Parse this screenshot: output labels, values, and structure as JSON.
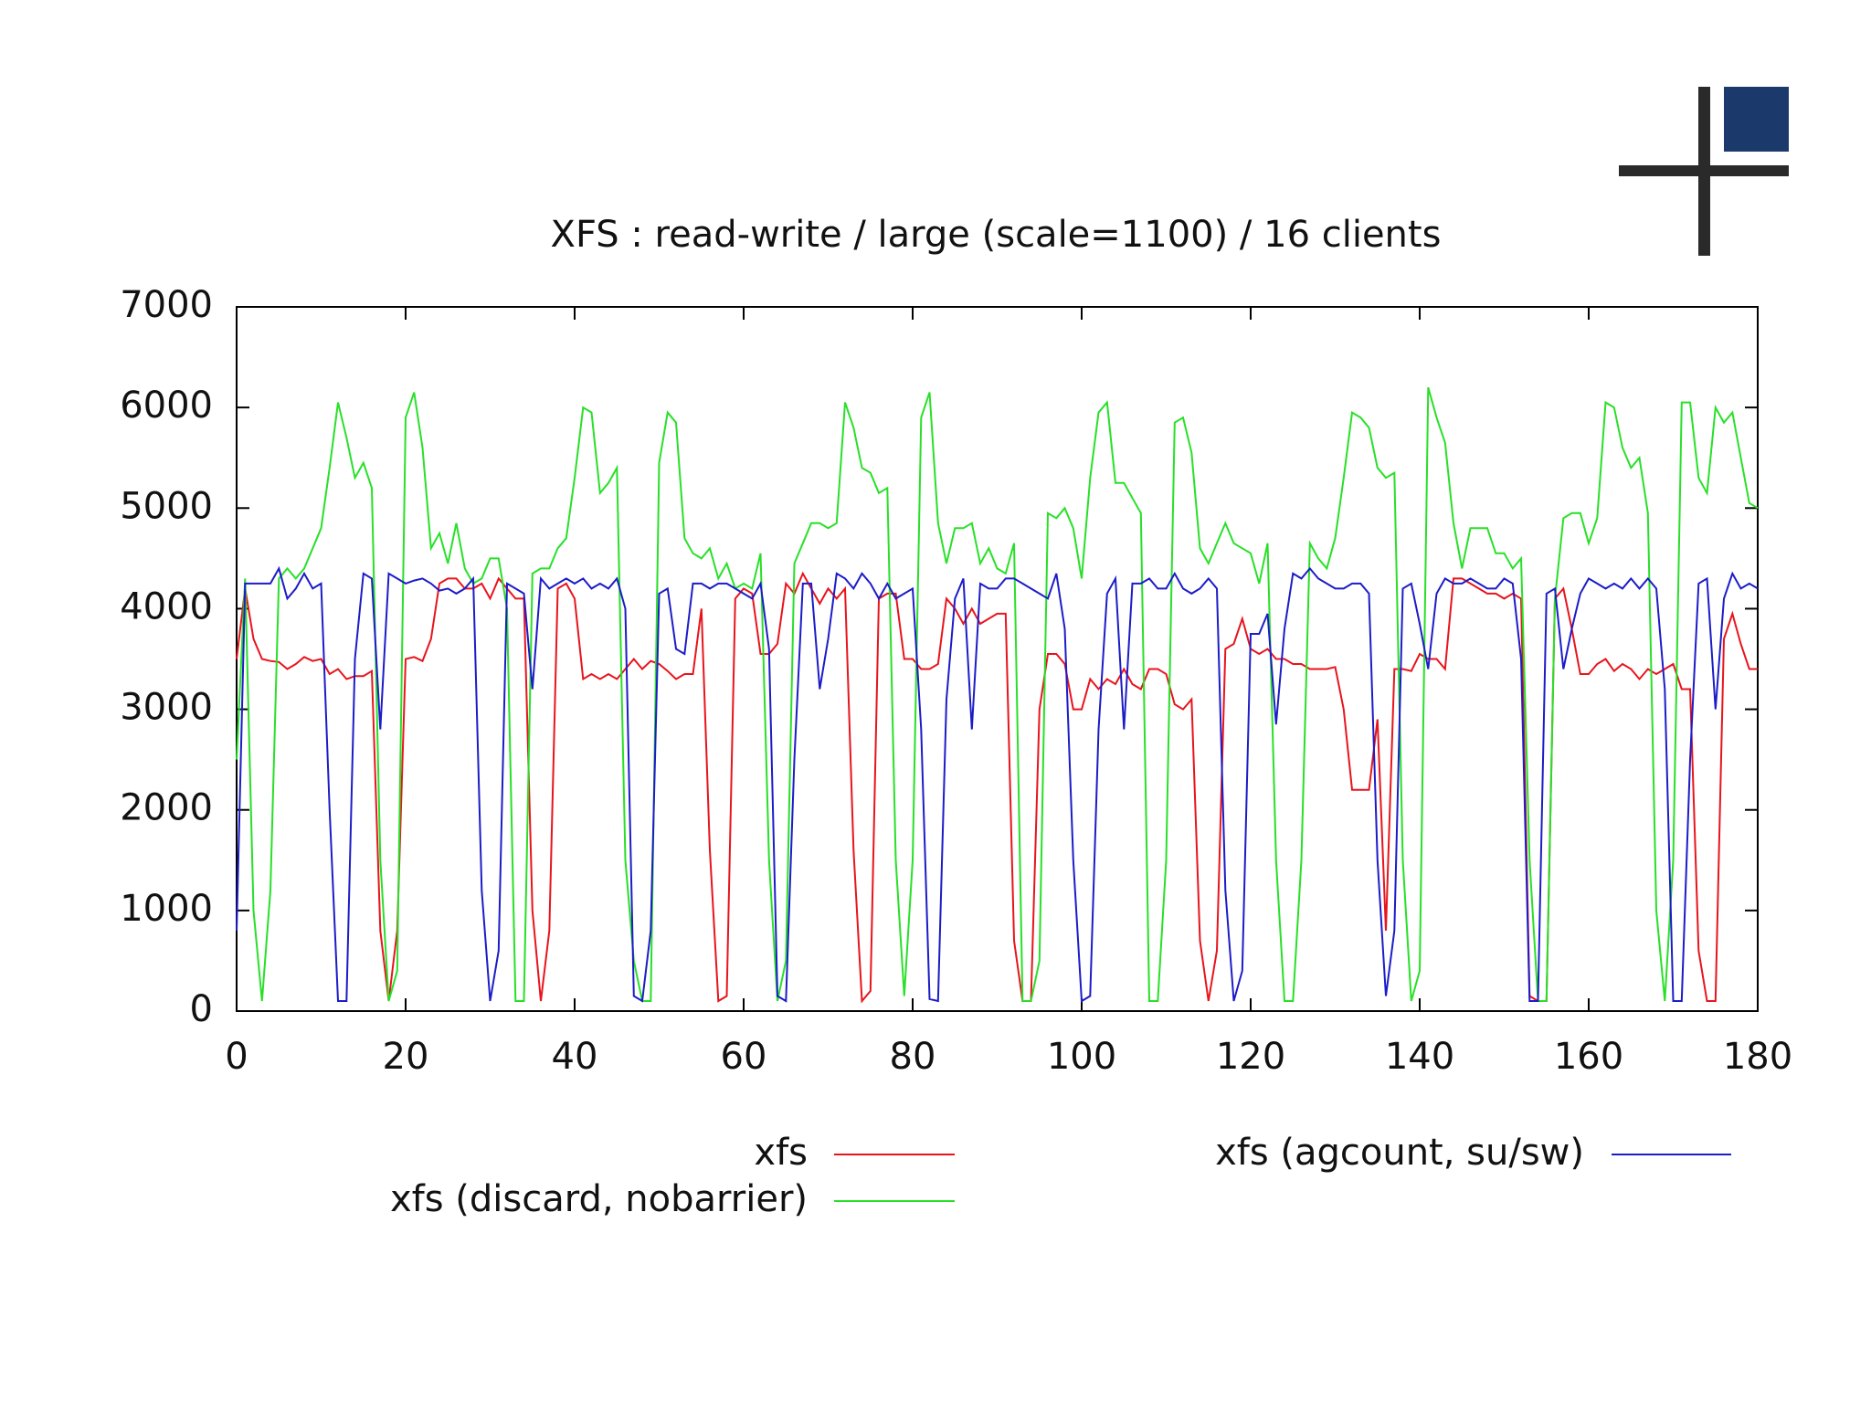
{
  "chart_data": {
    "type": "line",
    "title": "XFS : read-write / large (scale=1100) / 16 clients",
    "x": [
      0,
      1,
      2,
      3,
      4,
      5,
      6,
      7,
      8,
      9,
      10,
      11,
      12,
      13,
      14,
      15,
      16,
      17,
      18,
      19,
      20,
      21,
      22,
      23,
      24,
      25,
      26,
      27,
      28,
      29,
      30,
      31,
      32,
      33,
      34,
      35,
      36,
      37,
      38,
      39,
      40,
      41,
      42,
      43,
      44,
      45,
      46,
      47,
      48,
      49,
      50,
      51,
      52,
      53,
      54,
      55,
      56,
      57,
      58,
      59,
      60,
      61,
      62,
      63,
      64,
      65,
      66,
      67,
      68,
      69,
      70,
      71,
      72,
      73,
      74,
      75,
      76,
      77,
      78,
      79,
      80,
      81,
      82,
      83,
      84,
      85,
      86,
      87,
      88,
      89,
      90,
      91,
      92,
      93,
      94,
      95,
      96,
      97,
      98,
      99,
      100,
      101,
      102,
      103,
      104,
      105,
      106,
      107,
      108,
      109,
      110,
      111,
      112,
      113,
      114,
      115,
      116,
      117,
      118,
      119,
      120,
      121,
      122,
      123,
      124,
      125,
      126,
      127,
      128,
      129,
      130,
      131,
      132,
      133,
      134,
      135,
      136,
      137,
      138,
      139,
      140,
      141,
      142,
      143,
      144,
      145,
      146,
      147,
      148,
      149,
      150,
      151,
      152,
      153,
      154,
      155,
      156,
      157,
      158,
      159,
      160,
      161,
      162,
      163,
      164,
      165,
      166,
      167,
      168,
      169,
      170,
      171,
      172,
      173,
      174,
      175,
      176,
      177,
      178,
      179,
      180
    ],
    "series": [
      {
        "name": "xfs",
        "color": "#e8141c",
        "values": [
          3500,
          4200,
          3700,
          3500,
          3480,
          3470,
          3400,
          3450,
          3520,
          3480,
          3500,
          3350,
          3400,
          3300,
          3330,
          3330,
          3380,
          800,
          100,
          800,
          3500,
          3520,
          3480,
          3700,
          4250,
          4300,
          4300,
          4200,
          4200,
          4250,
          4100,
          4300,
          4200,
          4100,
          4100,
          1000,
          100,
          800,
          4200,
          4250,
          4100,
          3300,
          3350,
          3300,
          3350,
          3300,
          3400,
          3500,
          3400,
          3480,
          3450,
          3380,
          3300,
          3350,
          3350,
          4000,
          1600,
          100,
          150,
          4100,
          4200,
          4150,
          3550,
          3550,
          3650,
          4250,
          4150,
          4350,
          4200,
          4050,
          4200,
          4100,
          4200,
          1600,
          100,
          200,
          4100,
          4150,
          4150,
          3500,
          3500,
          3400,
          3400,
          3450,
          4100,
          4000,
          3850,
          4000,
          3850,
          3900,
          3950,
          3950,
          700,
          100,
          100,
          3000,
          3550,
          3550,
          3450,
          3000,
          3000,
          3300,
          3200,
          3300,
          3250,
          3400,
          3250,
          3200,
          3400,
          3400,
          3350,
          3050,
          3000,
          3100,
          700,
          100,
          600,
          3600,
          3650,
          3900,
          3600,
          3550,
          3600,
          3500,
          3500,
          3450,
          3450,
          3400,
          3400,
          3400,
          3420,
          3000,
          2200,
          2200,
          2200,
          2900,
          800,
          3400,
          3400,
          3380,
          3550,
          3500,
          3500,
          3400,
          4300,
          4300,
          4250,
          4200,
          4150,
          4150,
          4100,
          4150,
          4100,
          150,
          100,
          100,
          4100,
          4200,
          3800,
          3350,
          3350,
          3450,
          3500,
          3380,
          3450,
          3400,
          3300,
          3400,
          3350,
          3400,
          3450,
          3200,
          3200,
          600,
          100,
          100,
          3700,
          3950,
          3650,
          3400,
          3400
        ]
      },
      {
        "name": "xfs (discard, nobarrier)",
        "color": "#28e028",
        "values": [
          2500,
          4300,
          1000,
          100,
          1200,
          4300,
          4400,
          4300,
          4400,
          4600,
          4800,
          5400,
          6050,
          5700,
          5300,
          5450,
          5200,
          1500,
          100,
          400,
          5900,
          6150,
          5600,
          4600,
          4750,
          4450,
          4850,
          4400,
          4250,
          4300,
          4500,
          4500,
          4000,
          100,
          100,
          4350,
          4400,
          4400,
          4600,
          4700,
          5300,
          6000,
          5950,
          5150,
          5250,
          5400,
          1500,
          500,
          100,
          100,
          5450,
          5950,
          5850,
          4700,
          4550,
          4500,
          4600,
          4300,
          4450,
          4200,
          4250,
          4200,
          4550,
          1500,
          100,
          500,
          4450,
          4650,
          4850,
          4850,
          4800,
          4850,
          6050,
          5800,
          5400,
          5350,
          5150,
          5200,
          1500,
          150,
          1500,
          5900,
          6150,
          4850,
          4450,
          4800,
          4800,
          4850,
          4450,
          4600,
          4400,
          4350,
          4650,
          100,
          100,
          500,
          4950,
          4900,
          5000,
          4800,
          4300,
          5300,
          5950,
          6050,
          5250,
          5250,
          5100,
          4950,
          100,
          100,
          1500,
          5850,
          5900,
          5550,
          4600,
          4450,
          4650,
          4850,
          4650,
          4600,
          4550,
          4250,
          4650,
          1500,
          100,
          100,
          1500,
          4650,
          4500,
          4400,
          4700,
          5300,
          5950,
          5900,
          5800,
          5400,
          5300,
          5350,
          1500,
          100,
          400,
          6200,
          5900,
          5650,
          4850,
          4400,
          4800,
          4800,
          4800,
          4550,
          4550,
          4400,
          4500,
          1500,
          100,
          100,
          4100,
          4900,
          4950,
          4950,
          4650,
          4900,
          6050,
          6000,
          5600,
          5400,
          5500,
          4950,
          1000,
          100,
          1500,
          6050,
          6050,
          5300,
          5150,
          6000,
          5850,
          5950,
          5500,
          5050,
          5000
        ]
      },
      {
        "name": "xfs (agcount, su/sw)",
        "color": "#1c1cc8",
        "values": [
          800,
          4250,
          4250,
          4250,
          4250,
          4400,
          4100,
          4200,
          4350,
          4200,
          4250,
          2000,
          100,
          100,
          3500,
          4350,
          4300,
          2800,
          4350,
          4300,
          4250,
          4280,
          4300,
          4250,
          4180,
          4200,
          4150,
          4200,
          4300,
          1200,
          100,
          600,
          4250,
          4200,
          4150,
          3200,
          4300,
          4200,
          4250,
          4300,
          4250,
          4300,
          4200,
          4250,
          4200,
          4300,
          4000,
          150,
          100,
          800,
          4150,
          4200,
          3600,
          3550,
          4250,
          4250,
          4200,
          4250,
          4250,
          4200,
          4150,
          4100,
          4250,
          3600,
          150,
          100,
          2500,
          4250,
          4250,
          3200,
          3700,
          4350,
          4300,
          4200,
          4350,
          4250,
          4100,
          4250,
          4100,
          4150,
          4200,
          2800,
          120,
          100,
          3100,
          4100,
          4300,
          2800,
          4250,
          4200,
          4200,
          4300,
          4300,
          4250,
          4200,
          4150,
          4100,
          4350,
          3800,
          1500,
          100,
          150,
          2800,
          4150,
          4300,
          2800,
          4250,
          4250,
          4300,
          4200,
          4200,
          4350,
          4200,
          4150,
          4200,
          4300,
          4200,
          1200,
          100,
          400,
          3750,
          3750,
          3950,
          2850,
          3800,
          4350,
          4300,
          4400,
          4300,
          4250,
          4200,
          4200,
          4250,
          4250,
          4150,
          1500,
          150,
          800,
          4200,
          4250,
          3850,
          3400,
          4150,
          4300,
          4250,
          4250,
          4300,
          4250,
          4200,
          4200,
          4300,
          4250,
          3500,
          100,
          100,
          4150,
          4200,
          3400,
          3800,
          4150,
          4300,
          4250,
          4200,
          4250,
          4200,
          4300,
          4200,
          4300,
          4200,
          3200,
          100,
          100,
          2500,
          4250,
          4300,
          3000,
          4100,
          4350,
          4200,
          4250,
          4200
        ]
      }
    ],
    "xlim": [
      0,
      180
    ],
    "xticks": [
      0,
      20,
      40,
      60,
      80,
      100,
      120,
      140,
      160,
      180
    ],
    "ylim": [
      0,
      7000
    ],
    "yticks": [
      0,
      1000,
      2000,
      3000,
      4000,
      5000,
      6000,
      7000
    ]
  }
}
